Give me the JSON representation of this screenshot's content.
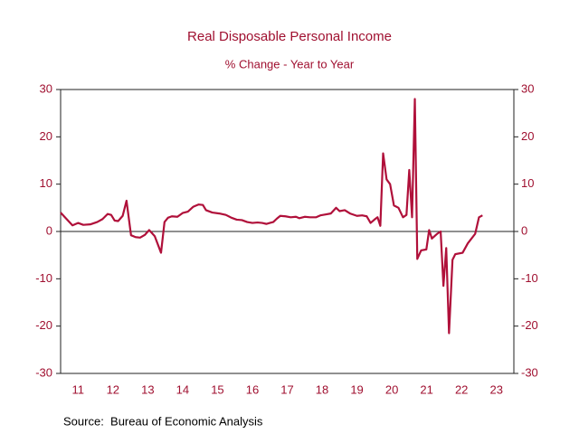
{
  "chart_data": {
    "type": "line",
    "title": "Real Disposable Personal Income",
    "subtitle": "% Change - Year to Year",
    "source": "Source:  Bureau of Economic Analysis",
    "xlim": [
      2011,
      2024
    ],
    "xticks": [
      {
        "value": 2011.5,
        "label": "11"
      },
      {
        "value": 2012.5,
        "label": "12"
      },
      {
        "value": 2013.5,
        "label": "13"
      },
      {
        "value": 2014.5,
        "label": "14"
      },
      {
        "value": 2015.5,
        "label": "15"
      },
      {
        "value": 2016.5,
        "label": "16"
      },
      {
        "value": 2017.5,
        "label": "17"
      },
      {
        "value": 2018.5,
        "label": "18"
      },
      {
        "value": 2019.5,
        "label": "19"
      },
      {
        "value": 2020.5,
        "label": "20"
      },
      {
        "value": 2021.5,
        "label": "21"
      },
      {
        "value": 2022.5,
        "label": "22"
      },
      {
        "value": 2023.5,
        "label": "23"
      }
    ],
    "ylim": [
      -30,
      30
    ],
    "yticks": [
      -30,
      -20,
      -10,
      0,
      10,
      20,
      30
    ],
    "y2lim": [
      -30,
      30
    ],
    "y2ticks": [
      -30,
      -20,
      -10,
      0,
      10,
      20,
      30
    ],
    "zero_line": true,
    "series": [
      {
        "color": "#b0103a",
        "x": [
          2011.0,
          2011.15,
          2011.34,
          2011.5,
          2011.65,
          2011.85,
          2012.05,
          2012.2,
          2012.35,
          2012.45,
          2012.55,
          2012.65,
          2012.78,
          2012.89,
          2013.02,
          2013.15,
          2013.28,
          2013.42,
          2013.54,
          2013.7,
          2013.88,
          2013.98,
          2014.08,
          2014.19,
          2014.35,
          2014.5,
          2014.65,
          2014.8,
          2014.96,
          2015.08,
          2015.17,
          2015.35,
          2015.55,
          2015.74,
          2015.9,
          2016.05,
          2016.2,
          2016.35,
          2016.5,
          2016.65,
          2016.78,
          2016.9,
          2017.0,
          2017.1,
          2017.2,
          2017.3,
          2017.45,
          2017.6,
          2017.75,
          2017.85,
          2018.0,
          2018.15,
          2018.33,
          2018.45,
          2018.6,
          2018.75,
          2018.9,
          2019.0,
          2019.15,
          2019.3,
          2019.5,
          2019.65,
          2019.78,
          2019.89,
          2020.0,
          2020.09,
          2020.17,
          2020.25,
          2020.35,
          2020.45,
          2020.56,
          2020.69,
          2020.82,
          2020.92,
          2021.0,
          2021.08,
          2021.16,
          2021.23,
          2021.34,
          2021.49,
          2021.57,
          2021.65,
          2021.8,
          2021.9,
          2021.98,
          2022.06,
          2022.14,
          2022.24,
          2022.32,
          2022.53,
          2022.68,
          2022.89,
          2023.0,
          2023.1
        ],
        "values": [
          4.0,
          2.8,
          1.3,
          1.8,
          1.4,
          1.5,
          2.0,
          2.6,
          3.7,
          3.5,
          2.3,
          2.2,
          3.3,
          6.5,
          -0.8,
          -1.2,
          -1.3,
          -0.7,
          0.3,
          -1.0,
          -4.5,
          2.0,
          2.9,
          3.2,
          3.1,
          3.9,
          4.2,
          5.2,
          5.7,
          5.6,
          4.5,
          4.0,
          3.8,
          3.5,
          2.9,
          2.5,
          2.4,
          2.0,
          1.8,
          1.9,
          1.8,
          1.6,
          1.8,
          2.0,
          2.7,
          3.3,
          3.2,
          3.0,
          3.1,
          2.8,
          3.1,
          3.0,
          3.0,
          3.4,
          3.6,
          3.8,
          5.0,
          4.3,
          4.5,
          3.8,
          3.3,
          3.4,
          3.2,
          1.8,
          2.5,
          3.0,
          1.2,
          16.5,
          11.0,
          10.0,
          5.5,
          5.0,
          3.0,
          3.5,
          13.0,
          3.0,
          28.0,
          -5.8,
          -4.0,
          -3.8,
          0.3,
          -1.5,
          -0.5,
          0.0,
          -11.5,
          -3.5,
          -21.5,
          -6.0,
          -4.8,
          -4.5,
          -2.5,
          -0.5,
          3.0,
          3.4
        ]
      }
    ]
  }
}
